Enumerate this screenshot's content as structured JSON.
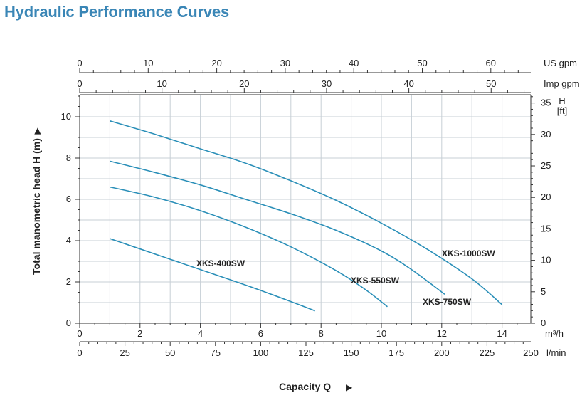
{
  "page_title": "Hydraulic Performance Curves",
  "chart_data": {
    "type": "line",
    "title": "",
    "xlabel": "Capacity Q",
    "ylabel": "Total manometric head H (m)",
    "xlim": [
      0,
      14.7
    ],
    "ylim": [
      0,
      11
    ],
    "grid": true,
    "colors": {
      "curve": "#2a8fb8",
      "grid": "#c7cfd6",
      "axis": "#333333",
      "title": "#3a86b6"
    },
    "axes": {
      "m3h": {
        "unit": "m³/h",
        "ticks": [
          0,
          2,
          4,
          6,
          8,
          10,
          12,
          14
        ]
      },
      "lmin": {
        "unit": "l/min",
        "ticks": [
          0,
          25,
          50,
          75,
          100,
          125,
          150,
          175,
          200,
          225,
          250
        ]
      },
      "usgpm": {
        "unit": "US gpm",
        "ticks": [
          0,
          10,
          20,
          30,
          40,
          50,
          60
        ]
      },
      "impgpm": {
        "unit": "Imp gpm",
        "ticks": [
          0,
          10,
          20,
          30,
          40,
          50
        ]
      },
      "head_m": {
        "unit": "",
        "ticks": [
          0,
          2,
          4,
          6,
          8,
          10
        ]
      },
      "head_ft": {
        "unit_line1": "H",
        "unit_line2": "[ft]",
        "ticks": [
          0,
          5,
          10,
          15,
          20,
          25,
          30,
          35
        ]
      }
    },
    "series": [
      {
        "name": "XKS-400SW",
        "x": [
          1.0,
          2.5,
          4.0,
          5.5,
          7.0,
          7.8
        ],
        "y": [
          4.1,
          3.35,
          2.6,
          1.85,
          1.05,
          0.6
        ]
      },
      {
        "name": "XKS-550SW",
        "x": [
          1.0,
          2.5,
          4.0,
          5.5,
          7.0,
          8.5,
          9.5,
          10.2
        ],
        "y": [
          6.6,
          6.1,
          5.45,
          4.65,
          3.7,
          2.55,
          1.6,
          0.8
        ]
      },
      {
        "name": "XKS-750SW",
        "x": [
          1.0,
          2.5,
          4.0,
          5.5,
          7.0,
          8.5,
          10.0,
          11.0,
          12.1
        ],
        "y": [
          7.85,
          7.3,
          6.7,
          6.0,
          5.3,
          4.5,
          3.5,
          2.6,
          1.4
        ]
      },
      {
        "name": "XKS-1000SW",
        "x": [
          1.0,
          2.5,
          4.0,
          5.5,
          7.0,
          8.5,
          10.0,
          11.5,
          13.0,
          14.0
        ],
        "y": [
          9.8,
          9.15,
          8.45,
          7.75,
          6.9,
          5.95,
          4.85,
          3.6,
          2.15,
          0.9
        ]
      }
    ]
  }
}
